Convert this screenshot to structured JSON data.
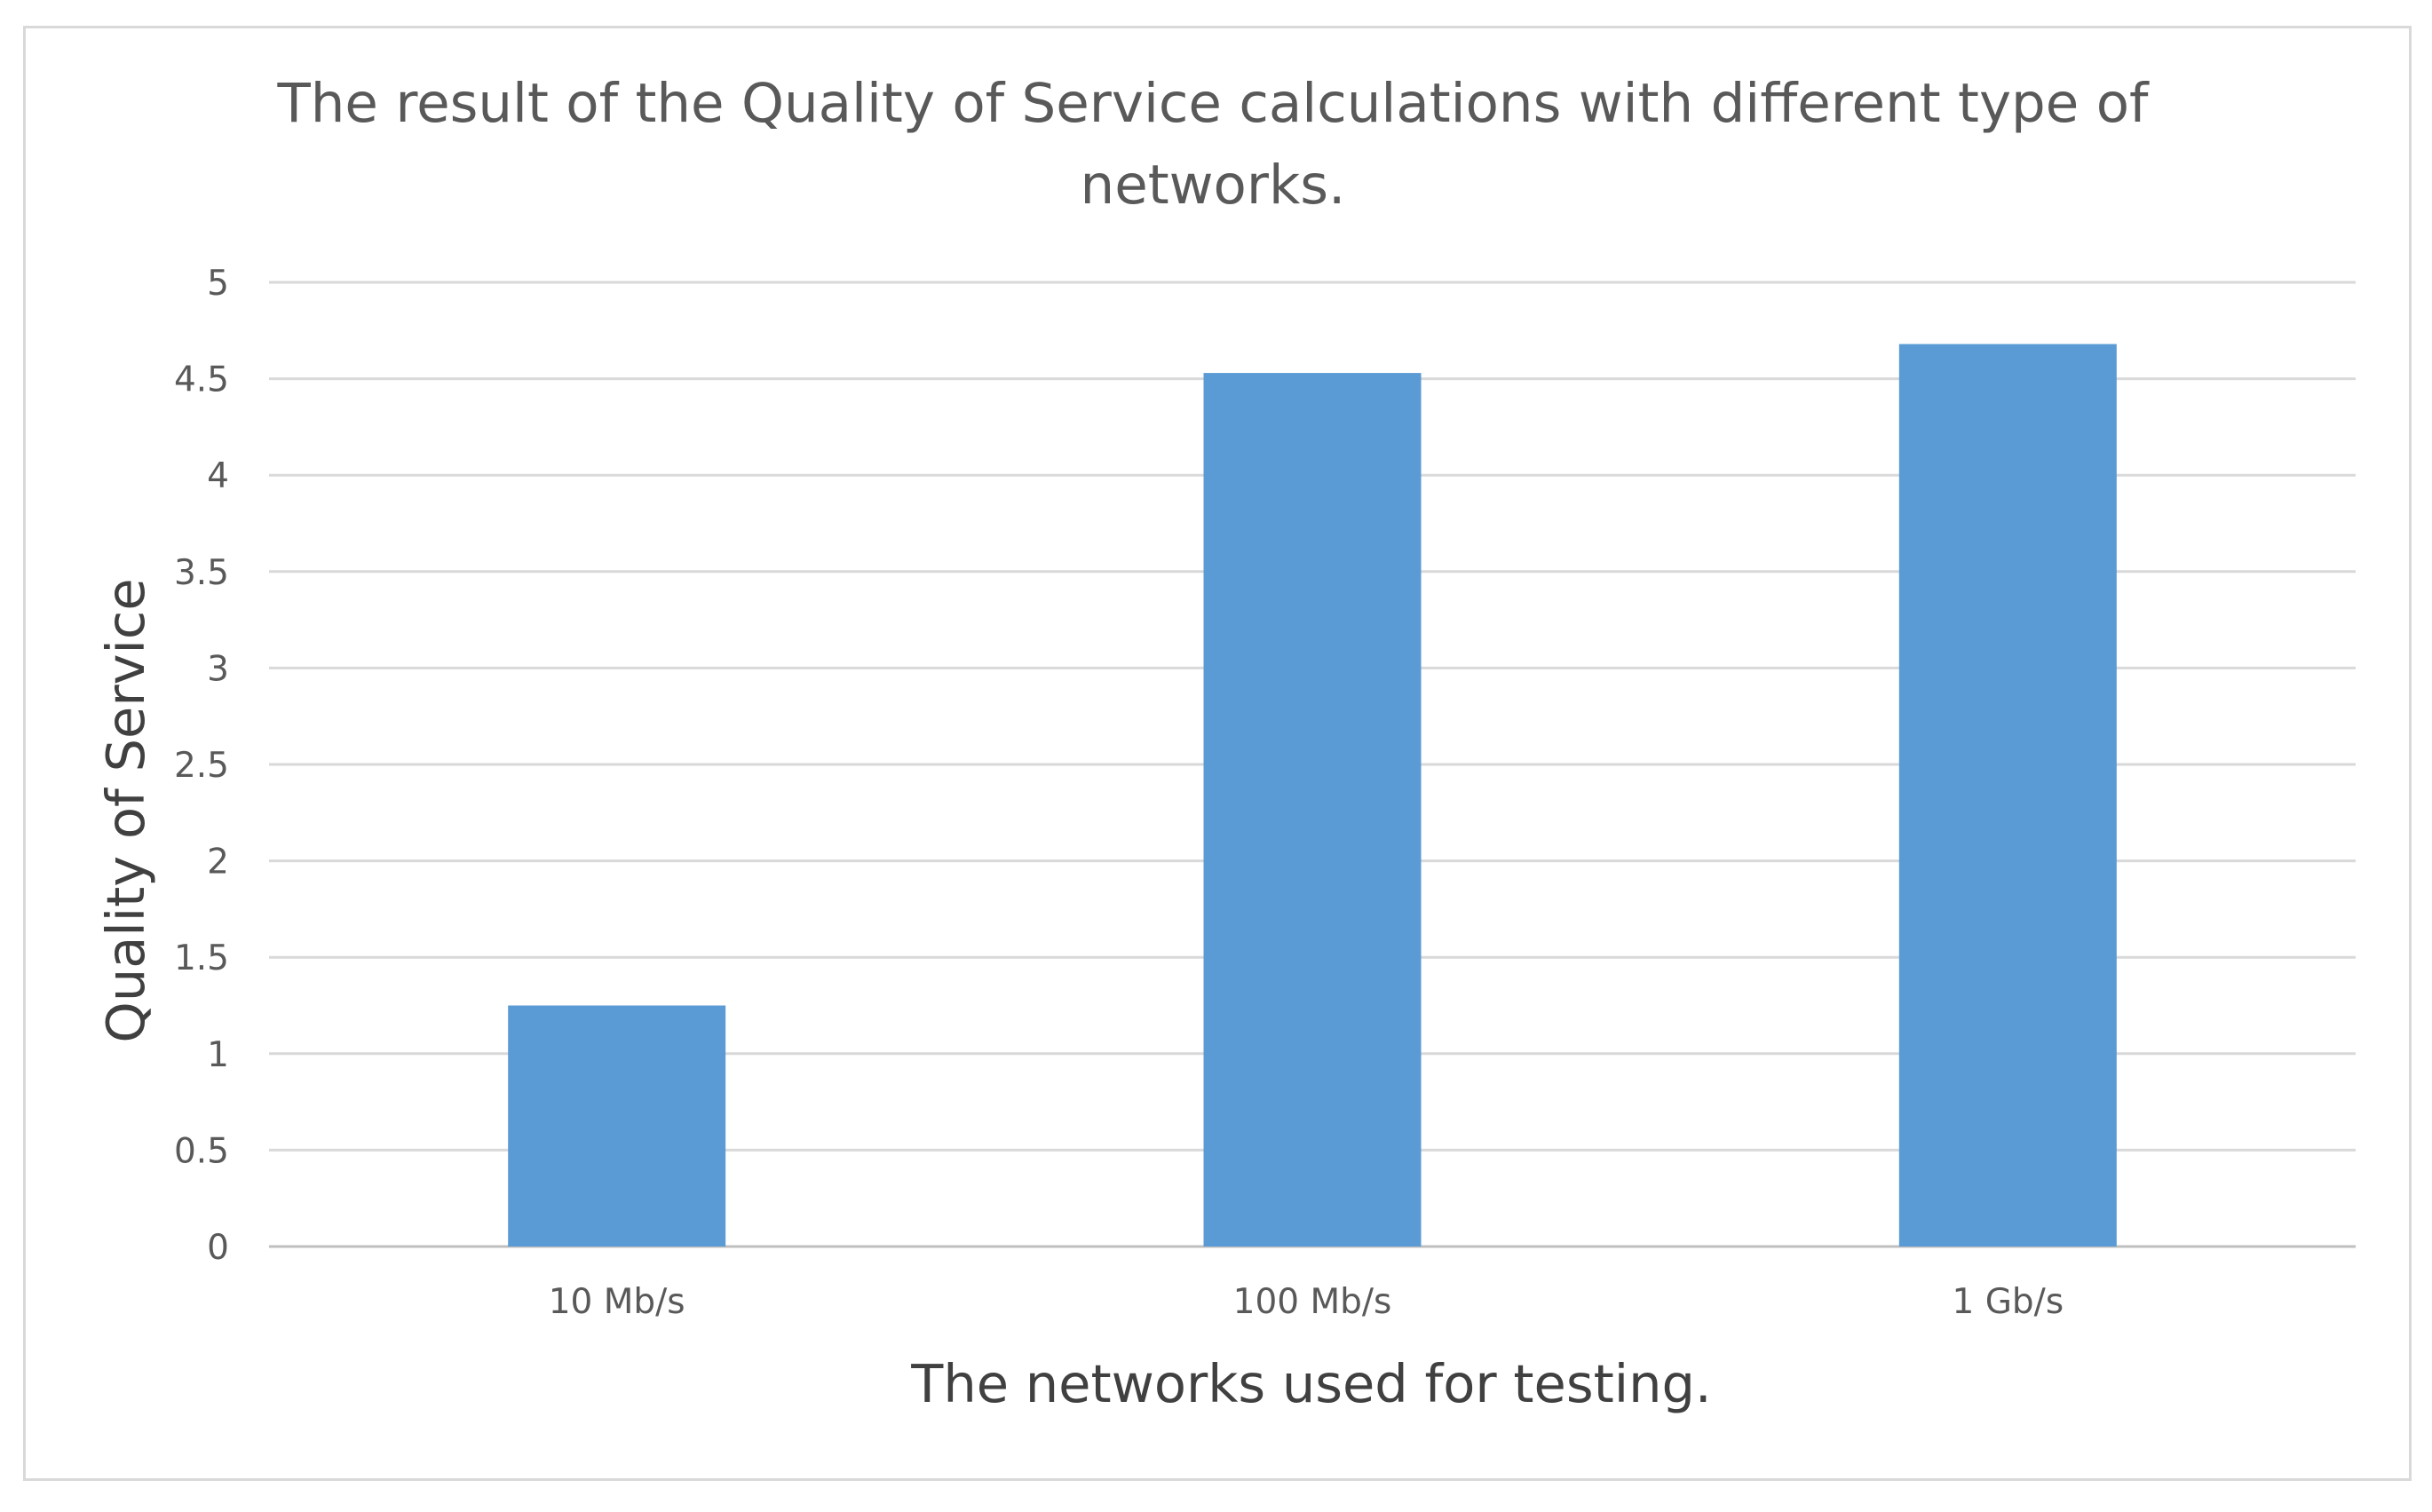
{
  "chart_data": {
    "type": "bar",
    "title_lines": [
      "The result of the Quality of Service calculations with different type of",
      "networks."
    ],
    "xlabel": "The networks used for testing.",
    "ylabel": "Quality of Service",
    "categories": [
      "10 Mb/s",
      "100 Mb/s",
      "1 Gb/s"
    ],
    "series": [
      {
        "values": [
          1.25,
          4.53,
          4.68
        ]
      }
    ],
    "ylim": [
      0,
      5
    ],
    "yticks": [
      "0",
      "0.5",
      "1",
      "1.5",
      "2",
      "2.5",
      "3",
      "3.5",
      "4",
      "4.5",
      "5"
    ],
    "grid": true,
    "legend": "none",
    "colors": {
      "bar": "#5b9bd5",
      "grid": "#d9d9d9",
      "title": "#595959",
      "axis_title": "#404040",
      "tick": "#595959"
    }
  }
}
